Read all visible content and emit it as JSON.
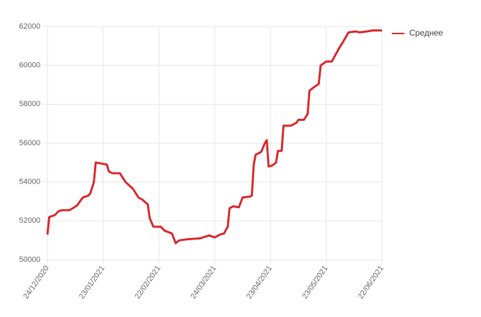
{
  "chart_data": {
    "type": "line",
    "x": [
      "24/12/2020",
      "25/12/2020",
      "28/12/2020",
      "30/12/2020",
      "01/01/2021",
      "05/01/2021",
      "09/01/2021",
      "12/01/2021",
      "15/01/2021",
      "16/01/2021",
      "18/01/2021",
      "19/01/2021",
      "22/01/2021",
      "25/01/2021",
      "26/01/2021",
      "28/01/2021",
      "01/02/2021",
      "04/02/2021",
      "08/02/2021",
      "11/02/2021",
      "13/02/2021",
      "16/02/2021",
      "17/02/2021",
      "19/02/2021",
      "23/02/2021",
      "25/02/2021",
      "01/03/2021",
      "03/03/2021",
      "05/03/2021",
      "09/03/2021",
      "16/03/2021",
      "21/03/2021",
      "24/03/2021",
      "27/03/2021",
      "29/03/2021",
      "31/03/2021",
      "01/04/2021",
      "03/04/2021",
      "06/04/2021",
      "08/04/2021",
      "12/04/2021",
      "13/04/2021",
      "14/04/2021",
      "15/04/2021",
      "18/04/2021",
      "20/04/2021",
      "21/04/2021",
      "22/04/2021",
      "24/04/2021",
      "26/04/2021",
      "27/04/2021",
      "29/04/2021",
      "30/04/2021",
      "04/05/2021",
      "07/05/2021",
      "08/05/2021",
      "11/05/2021",
      "13/05/2021",
      "14/05/2021",
      "16/05/2021",
      "19/05/2021",
      "20/05/2021",
      "23/05/2021",
      "26/05/2021",
      "28/05/2021",
      "30/05/2021",
      "01/06/2021",
      "04/06/2021",
      "08/06/2021",
      "10/06/2021",
      "14/06/2021",
      "17/06/2021",
      "22/06/2021"
    ],
    "series": [
      {
        "name": "Среднее",
        "color": "#d9262b",
        "values": [
          51300,
          52200,
          52300,
          52500,
          52550,
          52550,
          52800,
          53200,
          53300,
          53400,
          54000,
          55000,
          54950,
          54900,
          54550,
          54450,
          54450,
          54000,
          53650,
          53200,
          53100,
          52850,
          52150,
          51700,
          51700,
          51500,
          51350,
          50850,
          51000,
          51050,
          51100,
          51250,
          51150,
          51300,
          51350,
          51700,
          52650,
          52750,
          52700,
          53200,
          53250,
          53300,
          54900,
          55400,
          55550,
          56000,
          56150,
          54800,
          54850,
          55000,
          55600,
          55600,
          56900,
          56900,
          57050,
          57200,
          57200,
          57500,
          58700,
          58850,
          59050,
          60000,
          60200,
          60200,
          60550,
          60900,
          61200,
          61700,
          61750,
          61700,
          61750,
          61800,
          61800
        ]
      }
    ],
    "xlim": [
      "24/12/2020",
      "22/06/2021"
    ],
    "xticks": [
      "24/12/2020",
      "23/01/2021",
      "22/02/2021",
      "24/03/2021",
      "23/04/2021",
      "23/05/2021",
      "22/06/2021"
    ],
    "ylim": [
      50000,
      62000
    ],
    "yticks": [
      50000,
      52000,
      54000,
      56000,
      58000,
      60000,
      62000
    ],
    "grid": true,
    "legend": "top-right"
  }
}
